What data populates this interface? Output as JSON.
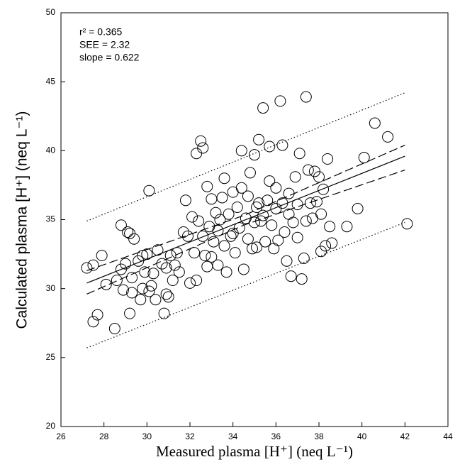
{
  "chart_data": {
    "type": "scatter",
    "x_label": "Measured plasma [H⁺] (neq L⁻¹)",
    "y_label": "Calculated plasma [H⁺] (neq L⁻¹)",
    "annotations": [
      "r² = 0.365",
      "SEE = 2.32",
      "slope = 0.622"
    ],
    "xlim": [
      26,
      44
    ],
    "xticks": [
      26,
      28,
      30,
      32,
      34,
      36,
      38,
      40,
      42,
      44
    ],
    "ylim": [
      20,
      50
    ],
    "yticks": [
      20,
      25,
      30,
      35,
      40,
      45,
      50
    ],
    "color": "#000000",
    "x": [
      27.2,
      27.5,
      27.5,
      27.7,
      27.9,
      28.1,
      28.5,
      28.6,
      28.8,
      28.8,
      28.9,
      29.0,
      29.1,
      29.2,
      29.2,
      29.3,
      29.3,
      29.4,
      29.6,
      29.7,
      29.8,
      29.8,
      29.9,
      30.0,
      30.1,
      30.1,
      30.2,
      30.3,
      30.4,
      30.5,
      30.7,
      30.8,
      30.9,
      30.9,
      31.0,
      31.1,
      31.2,
      31.3,
      31.4,
      31.5,
      31.7,
      31.8,
      31.9,
      32.0,
      32.1,
      32.2,
      32.3,
      32.3,
      32.4,
      32.5,
      32.6,
      32.6,
      32.7,
      32.8,
      32.8,
      32.9,
      33.0,
      33.0,
      33.1,
      33.2,
      33.3,
      33.3,
      33.4,
      33.5,
      33.6,
      33.6,
      33.7,
      33.8,
      33.9,
      34.0,
      34.0,
      34.1,
      34.2,
      34.3,
      34.4,
      34.4,
      34.5,
      34.6,
      34.7,
      34.7,
      34.8,
      34.9,
      35.0,
      35.0,
      35.1,
      35.1,
      35.2,
      35.2,
      35.3,
      35.4,
      35.4,
      35.5,
      35.6,
      35.7,
      35.7,
      35.8,
      35.9,
      36.0,
      36.0,
      36.1,
      36.2,
      36.3,
      36.3,
      36.4,
      36.5,
      36.6,
      36.6,
      36.7,
      36.8,
      36.9,
      37.0,
      37.0,
      37.1,
      37.2,
      37.3,
      37.4,
      37.4,
      37.5,
      37.6,
      37.7,
      37.8,
      37.9,
      38.0,
      38.1,
      38.1,
      38.2,
      38.3,
      38.4,
      38.5,
      38.6,
      39.3,
      39.8,
      40.1,
      40.6,
      41.2,
      42.1
    ],
    "values": [
      31.5,
      31.7,
      27.6,
      28.1,
      32.4,
      30.3,
      27.1,
      30.6,
      31.4,
      34.6,
      29.9,
      31.8,
      34.1,
      34.0,
      28.2,
      29.7,
      30.8,
      33.6,
      32.0,
      29.2,
      30.0,
      32.4,
      31.2,
      32.5,
      37.1,
      29.8,
      30.2,
      31.1,
      29.2,
      32.8,
      31.8,
      28.2,
      29.6,
      31.5,
      29.4,
      32.4,
      30.6,
      31.7,
      32.6,
      31.2,
      34.1,
      36.4,
      33.8,
      30.4,
      35.2,
      32.6,
      39.8,
      30.6,
      34.9,
      40.7,
      40.2,
      33.8,
      32.4,
      37.4,
      31.6,
      34.5,
      36.5,
      32.3,
      33.4,
      35.5,
      34.2,
      31.7,
      35.0,
      36.6,
      33.1,
      38.0,
      31.2,
      35.4,
      33.8,
      37.0,
      34.0,
      32.6,
      35.9,
      34.4,
      37.3,
      40.0,
      31.4,
      35.1,
      33.6,
      36.7,
      38.4,
      32.9,
      39.7,
      34.8,
      33.0,
      35.9,
      40.8,
      36.2,
      34.9,
      43.1,
      35.3,
      33.4,
      36.4,
      37.8,
      40.3,
      34.6,
      32.9,
      35.8,
      37.3,
      33.5,
      43.6,
      36.2,
      40.4,
      34.1,
      32.0,
      36.9,
      35.4,
      30.9,
      34.8,
      38.1,
      33.7,
      36.1,
      39.8,
      30.7,
      32.2,
      43.9,
      34.9,
      38.6,
      36.2,
      35.1,
      38.5,
      36.3,
      38.1,
      35.4,
      32.7,
      37.2,
      33.1,
      39.4,
      34.5,
      33.3,
      34.5,
      35.8,
      39.5,
      42.0,
      41.0,
      34.7
    ],
    "fit_lines": [
      {
        "style": "solid",
        "x": [
          27.2,
          42
        ],
        "values": [
          30.4,
          39.6
        ]
      },
      {
        "style": "dashed",
        "x": [
          27.2,
          34.5,
          42
        ],
        "values": [
          31.3,
          35.3,
          40.4
        ]
      },
      {
        "style": "dashed",
        "x": [
          27.2,
          34.5,
          42
        ],
        "values": [
          29.6,
          34.6,
          38.6
        ]
      },
      {
        "style": "dotted",
        "x": [
          27.2,
          42
        ],
        "values": [
          34.9,
          44.2
        ]
      },
      {
        "style": "dotted",
        "x": [
          27.2,
          42
        ],
        "values": [
          25.7,
          34.8
        ]
      }
    ]
  }
}
